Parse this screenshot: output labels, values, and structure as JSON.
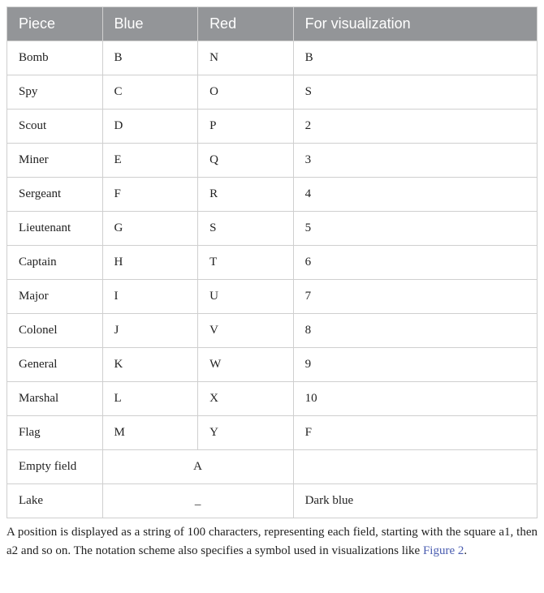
{
  "table": {
    "columns": [
      "Piece",
      "Blue",
      "Red",
      "For visualization"
    ],
    "header_bg": "#939598",
    "header_fg": "#ffffff",
    "border_color": "#cfcfcf",
    "rows": [
      {
        "piece": "Bomb",
        "blue": "B",
        "red": "N",
        "vis": "B"
      },
      {
        "piece": "Spy",
        "blue": "C",
        "red": "O",
        "vis": "S"
      },
      {
        "piece": "Scout",
        "blue": "D",
        "red": "P",
        "vis": "2"
      },
      {
        "piece": "Miner",
        "blue": "E",
        "red": "Q",
        "vis": "3"
      },
      {
        "piece": "Sergeant",
        "blue": "F",
        "red": "R",
        "vis": "4"
      },
      {
        "piece": "Lieutenant",
        "blue": "G",
        "red": "S",
        "vis": "5"
      },
      {
        "piece": "Captain",
        "blue": "H",
        "red": "T",
        "vis": "6"
      },
      {
        "piece": "Major",
        "blue": "I",
        "red": "U",
        "vis": "7"
      },
      {
        "piece": "Colonel",
        "blue": "J",
        "red": "V",
        "vis": "8"
      },
      {
        "piece": "General",
        "blue": "K",
        "red": "W",
        "vis": "9"
      },
      {
        "piece": "Marshal",
        "blue": "L",
        "red": "X",
        "vis": "10"
      },
      {
        "piece": "Flag",
        "blue": "M",
        "red": "Y",
        "vis": "F"
      }
    ],
    "special_rows": [
      {
        "piece": "Empty field",
        "merged": "A",
        "vis": ""
      },
      {
        "piece": "Lake",
        "merged": "_",
        "vis": "Dark blue"
      }
    ]
  },
  "caption": {
    "pre": "A position is displayed as a string of 100 characters, representing each field, starting with the square a1, then a2 and so on. The notation scheme also specifies a symbol used in visualizations like ",
    "link_text": "Figure 2",
    "post": "."
  }
}
